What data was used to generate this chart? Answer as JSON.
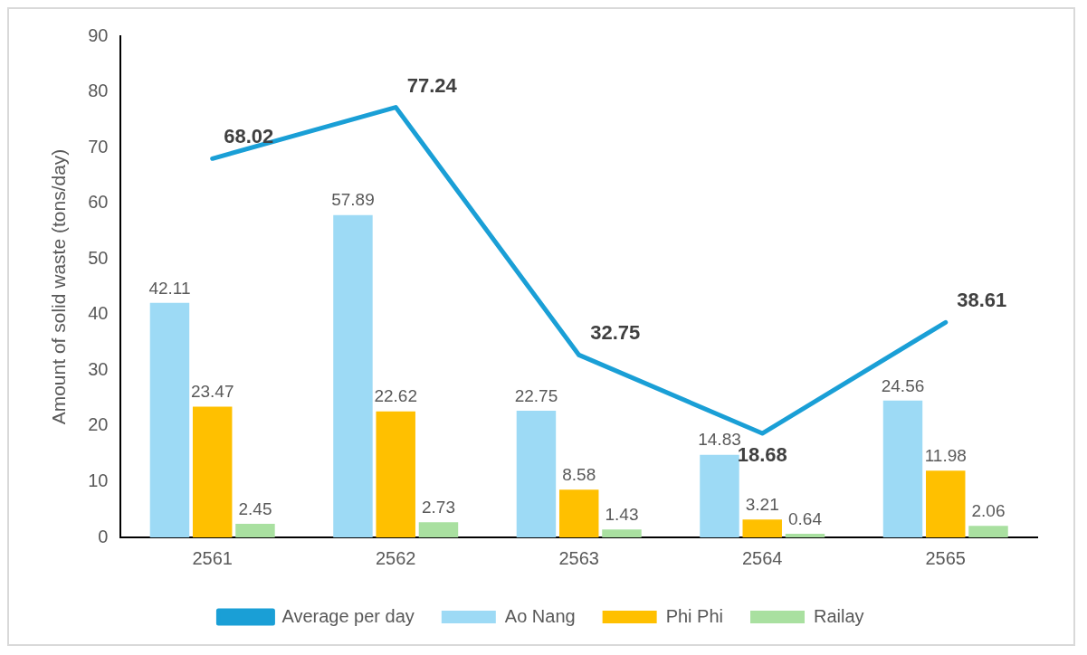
{
  "chart_data": {
    "type": "bar",
    "ylabel": "Amount of solid waste (tons/day)",
    "categories": [
      "2561",
      "2562",
      "2563",
      "2564",
      "2565"
    ],
    "series": [
      {
        "name": "Ao Nang",
        "color": "#9ddaf5",
        "values": [
          42.11,
          57.89,
          22.75,
          14.83,
          24.56
        ]
      },
      {
        "name": "Phi Phi",
        "color": "#ffc000",
        "values": [
          23.47,
          22.62,
          8.58,
          3.21,
          11.98
        ]
      },
      {
        "name": "Railay",
        "color": "#a9e0a0",
        "values": [
          2.45,
          2.73,
          1.43,
          0.64,
          2.06
        ]
      },
      {
        "name": "Average per day",
        "type": "line",
        "color": "#1a9fd6",
        "values": [
          68.02,
          77.24,
          32.75,
          18.68,
          38.61
        ]
      }
    ],
    "ylim": [
      0,
      90
    ],
    "yticks": [
      0,
      10,
      20,
      30,
      40,
      50,
      60,
      70,
      80,
      90
    ],
    "grid": false,
    "legend": "bottom",
    "data_labels": true,
    "marker": "none"
  }
}
